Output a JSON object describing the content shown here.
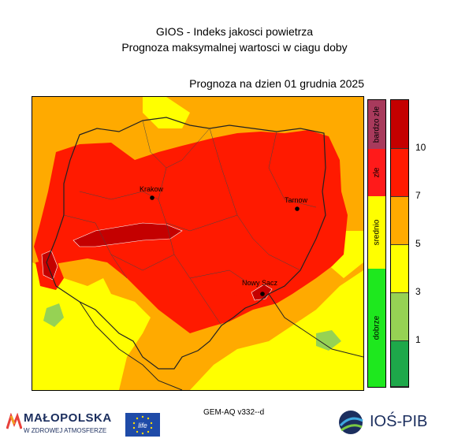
{
  "header": {
    "title_line1": "GIOS - Indeks jakosci powietrza",
    "title_line2": "Prognoza maksymalnej wartosci w ciagu doby",
    "forecast_date": "Prognoza na dzien  01 grudnia 2025"
  },
  "map": {
    "cities": [
      {
        "name": "Krakow",
        "label": "Krakow"
      },
      {
        "name": "Tarnow",
        "label": "Tarnow"
      },
      {
        "name": "Nowy Sacz",
        "label": "Nowy Sacz"
      }
    ]
  },
  "legend": {
    "categories": [
      {
        "label": "bardzo zle",
        "color": "#a83a5c"
      },
      {
        "label": "zle",
        "color": "#ff1a1a"
      },
      {
        "label": "srednio",
        "color": "#ffff00"
      },
      {
        "label": "dobrze",
        "color": "#1ee81e"
      }
    ],
    "classes": [
      {
        "from": 10,
        "color": "#c40000"
      },
      {
        "from": 7,
        "color": "#ff1a00"
      },
      {
        "from": 5,
        "color": "#ffaa00"
      },
      {
        "from": 3,
        "color": "#ffff00"
      },
      {
        "from": 1,
        "color": "#96d254"
      },
      {
        "from": 0,
        "color": "#1ea84a"
      }
    ],
    "ticks": [
      "10",
      "7",
      "5",
      "3",
      "1"
    ]
  },
  "footer": {
    "model_version": "GEM-AQ v332--d",
    "malopolska_title": "MAŁOPOLSKA",
    "malopolska_subtitle": "W ZDROWEJ ATMOSFERZE",
    "eu_logo_text": "life",
    "ios_logo_text": "IOŚ-PIB"
  }
}
